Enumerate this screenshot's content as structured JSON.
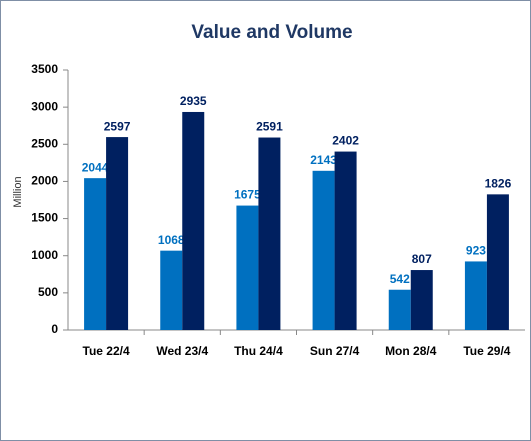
{
  "chart_data": {
    "type": "bar",
    "title": "Value and Volume",
    "y_label": "Million",
    "categories": [
      "Tue 22/4",
      "Wed 23/4",
      "Thu  24/4",
      "Sun  27/4",
      "Mon  28/4",
      "Tue 29/4"
    ],
    "series": [
      {
        "color": "#0070c0",
        "values": [
          2044,
          1068,
          1675,
          2143,
          542,
          923
        ]
      },
      {
        "color": "#002060",
        "values": [
          2597,
          2935,
          2591,
          2402,
          807,
          1826
        ]
      }
    ],
    "ylim": [
      0,
      3500
    ],
    "yticks": [
      0,
      500,
      1000,
      1500,
      2000,
      2500,
      3000,
      3500
    ],
    "grid": false
  }
}
